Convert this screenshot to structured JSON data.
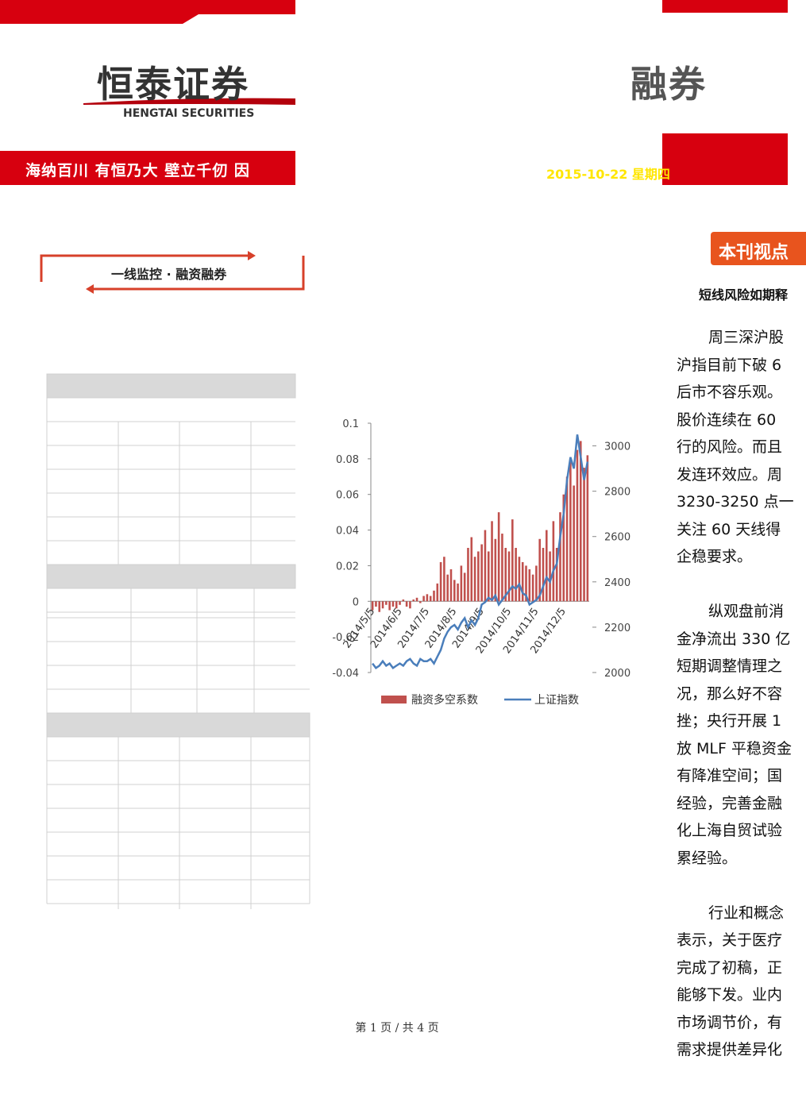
{
  "header": {
    "logo": "恒泰证券",
    "logo_en": "HENGTAI SECURITIES",
    "slogan": "海纳百川 有恒乃大 壁立千仞 因",
    "right_logo": "融券",
    "date": "2015-10-22 星期四"
  },
  "section_title": "一线监控 · 融资融券",
  "sidebar": {
    "tab": "本刊视点",
    "subtitle": "短线风险如期释",
    "paragraphs": [
      [
        "周三深沪股",
        "沪指目前下破 6",
        "后市不容乐观。",
        "股价连续在 60",
        "行的风险。而且",
        "发连环效应。周",
        "3230-3250 点一",
        "关注 60 天线得",
        "企稳要求。"
      ],
      [
        "纵观盘前消",
        "金净流出 330 亿",
        "短期调整情理之",
        "况，那么好不容",
        "挫；央行开展 1",
        "放 MLF 平稳资金",
        "有降准空间；国",
        "经验，完善金融",
        "化上海自贸试验",
        "累经验。"
      ],
      [
        "行业和概念",
        "表示，关于医疗",
        "完成了初稿，正",
        "能够下发。业内",
        "市场调节价，有",
        "需求提供差异化"
      ]
    ]
  },
  "chart_data": {
    "type": "bar",
    "categories": [
      "2014/5/5",
      null,
      null,
      null,
      null,
      null,
      null,
      null,
      "2014/6/5",
      null,
      null,
      null,
      null,
      null,
      null,
      null,
      "2014/7/5",
      null,
      null,
      null,
      null,
      null,
      null,
      null,
      "2014/8/5",
      null,
      null,
      null,
      null,
      null,
      null,
      null,
      "2014/9/5",
      null,
      null,
      null,
      null,
      null,
      null,
      null,
      "2014/10/5",
      null,
      null,
      null,
      null,
      null,
      null,
      null,
      "2014/11/5",
      null,
      null,
      null,
      null,
      null,
      null,
      null,
      "2014/12/5",
      null,
      null,
      null,
      null,
      null,
      null,
      null
    ],
    "series": [
      {
        "name": "融资多空系数",
        "color": "#c0504d",
        "values": [
          -0.005,
          -0.003,
          -0.006,
          -0.004,
          -0.002,
          -0.005,
          -0.003,
          -0.004,
          -0.002,
          0.001,
          -0.003,
          -0.004,
          0.001,
          0.002,
          -0.001,
          0.003,
          0.004,
          0.003,
          0.006,
          0.01,
          0.022,
          0.025,
          0.015,
          0.018,
          0.012,
          0.01,
          0.02,
          0.016,
          0.03,
          0.036,
          0.025,
          0.028,
          0.032,
          0.04,
          0.028,
          0.045,
          0.035,
          0.05,
          0.038,
          0.03,
          0.028,
          0.046,
          0.03,
          0.025,
          0.022,
          0.02,
          0.018,
          0.015,
          0.02,
          0.035,
          0.03,
          0.04,
          0.028,
          0.045,
          0.03,
          0.05,
          0.06,
          0.07,
          0.08,
          0.065,
          0.085,
          0.09,
          0.075,
          0.082
        ]
      },
      {
        "name": "上证指数",
        "color": "#4a7ebb",
        "type": "line",
        "axis": "y2",
        "values": [
          2040,
          2020,
          2030,
          2050,
          2030,
          2040,
          2020,
          2030,
          2040,
          2030,
          2050,
          2060,
          2040,
          2030,
          2060,
          2050,
          2050,
          2060,
          2040,
          2070,
          2100,
          2150,
          2180,
          2200,
          2210,
          2190,
          2220,
          2240,
          2200,
          2230,
          2210,
          2240,
          2300,
          2310,
          2330,
          2320,
          2340,
          2300,
          2320,
          2340,
          2360,
          2380,
          2370,
          2390,
          2350,
          2340,
          2300,
          2310,
          2320,
          2340,
          2380,
          2420,
          2400,
          2450,
          2480,
          2600,
          2700,
          2850,
          2950,
          2900,
          3050,
          2950,
          2850,
          2930
        ]
      }
    ],
    "ylim": [
      -0.04,
      0.1
    ],
    "yticks": [
      0.1,
      0.08,
      0.06,
      0.04,
      0.02,
      0,
      -0.02,
      -0.04
    ],
    "y2lim": [
      2000,
      3100
    ],
    "y2ticks": [
      3000,
      2800,
      2600,
      2400,
      2200,
      2000
    ],
    "legend": "bottom"
  },
  "footer": "第 1 页 / 共 4 页"
}
